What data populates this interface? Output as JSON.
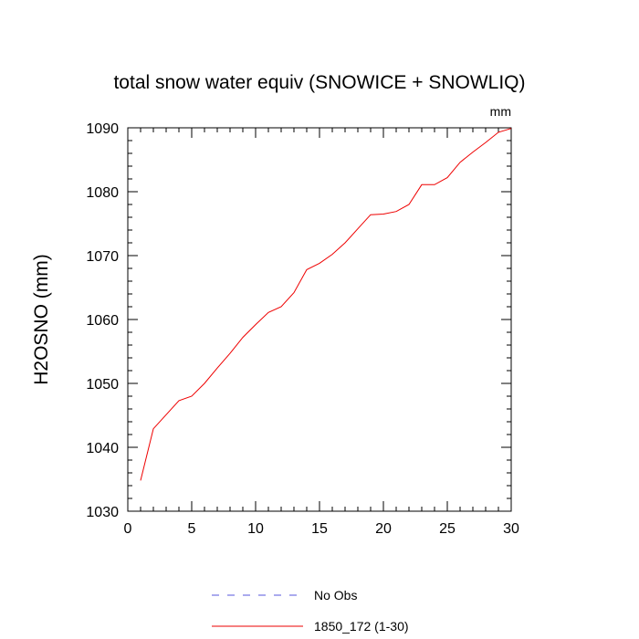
{
  "chart_data": {
    "type": "line",
    "title": "total snow water equiv (SNOWICE + SNOWLIQ)",
    "units": "mm",
    "xlabel": "",
    "ylabel": "H2OSNO  (mm)",
    "xlim": [
      0,
      30
    ],
    "ylim": [
      1030,
      1090
    ],
    "xticks": [
      0,
      5,
      10,
      15,
      20,
      25,
      30
    ],
    "yticks": [
      1030,
      1040,
      1050,
      1060,
      1070,
      1080,
      1090
    ],
    "series": [
      {
        "name": "No Obs",
        "color": "#5555dd",
        "dash": "dashed",
        "x": [],
        "y": []
      },
      {
        "name": "1850_172 (1-30)",
        "color": "#ee0000",
        "dash": "solid",
        "x": [
          1,
          2,
          3,
          4,
          5,
          6,
          7,
          8,
          9,
          10,
          11,
          12,
          13,
          14,
          15,
          16,
          17,
          18,
          19,
          20,
          21,
          22,
          23,
          24,
          25,
          26,
          27,
          28,
          29,
          30
        ],
        "y": [
          1034.8,
          1042.9,
          1045.1,
          1047.3,
          1048.0,
          1050.0,
          1052.4,
          1054.7,
          1057.2,
          1059.2,
          1061.1,
          1062.0,
          1064.2,
          1067.8,
          1068.8,
          1070.2,
          1072.0,
          1074.2,
          1076.4,
          1076.5,
          1076.9,
          1078.0,
          1081.1,
          1081.1,
          1082.2,
          1084.6,
          1086.2,
          1087.7,
          1089.3,
          1089.9
        ]
      }
    ]
  }
}
